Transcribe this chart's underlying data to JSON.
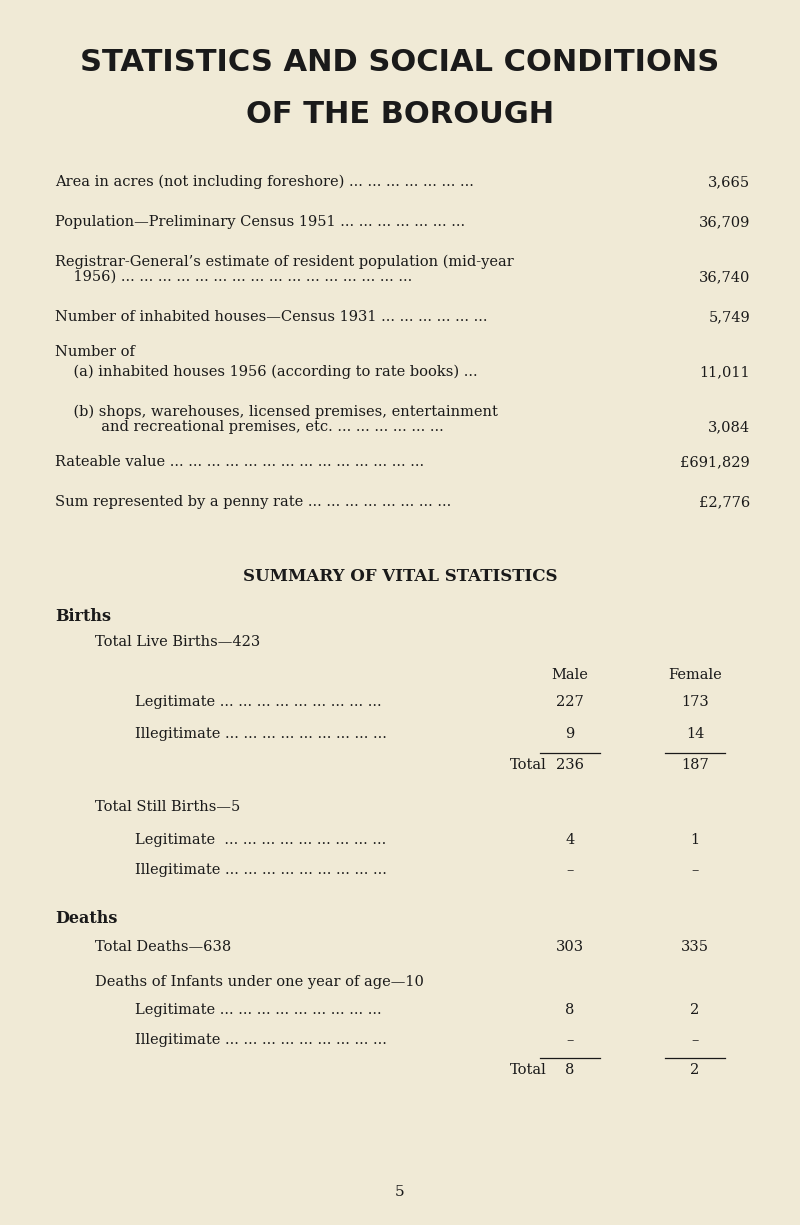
{
  "bg_color": "#f0ead6",
  "text_color": "#1a1a1a",
  "title_line1": "STATISTICS AND SOCIAL CONDITIONS",
  "title_line2": "OF THE BOROUGH",
  "summary_title": "SUMMARY OF VITAL STATISTICS",
  "births_header": "Births",
  "total_live_births": "Total Live Births—423",
  "col_male": "Male",
  "col_female": "Female",
  "births_rows": [
    {
      "label": "Legitimate ... ... ... ... ... ... ... ... ...",
      "male": "227",
      "female": "173"
    },
    {
      "label": "Illegitimate ... ... ... ... ... ... ... ... ...",
      "male": "9",
      "female": "14"
    }
  ],
  "births_total_label": "Total",
  "births_total_male": "236",
  "births_total_female": "187",
  "total_still_births": "Total Still Births—5",
  "still_births_rows": [
    {
      "label": "Legitimate  ... ... ... ... ... ... ... ... ...",
      "male": "4",
      "female": "1"
    },
    {
      "label": "Illegitimate ... ... ... ... ... ... ... ... ...",
      "male": "–",
      "female": "–"
    }
  ],
  "deaths_header": "Deaths",
  "total_deaths": "Total Deaths—638",
  "total_deaths_male": "303",
  "total_deaths_female": "335",
  "infant_deaths": "Deaths of Infants under one year of age—10",
  "infant_rows": [
    {
      "label": "Legitimate ... ... ... ... ... ... ... ... ...",
      "male": "8",
      "female": "2"
    },
    {
      "label": "Illegitimate ... ... ... ... ... ... ... ... ...",
      "male": "–",
      "female": "–"
    }
  ],
  "infant_total_label": "Total",
  "infant_total_male": "8",
  "infant_total_female": "2",
  "page_number": "5",
  "section1_rows": [
    {
      "label": "Area in acres (not including foreshore) ... ... ... ... ... ... ...",
      "value": "3,665",
      "indent": 0,
      "multiline": false
    },
    {
      "label": "Population—Preliminary Census 1951 ... ... ... ... ... ... ...",
      "value": "36,709",
      "indent": 0,
      "multiline": false
    },
    {
      "label": "Registrar-General’s estimate of resident population (mid-year",
      "value": "",
      "indent": 0,
      "multiline": true
    },
    {
      "label": "    1956) ... ... ... ... ... ... ... ... ... ... ... ... ... ... ... ...",
      "value": "36,740",
      "indent": 0,
      "multiline": false
    },
    {
      "label": "Number of inhabited houses—Census 1931 ... ... ... ... ... ...",
      "value": "5,749",
      "indent": 0,
      "multiline": false
    },
    {
      "label": "Number of",
      "value": "",
      "indent": 0,
      "multiline": false
    },
    {
      "label": "    (a) inhabited houses 1956 (according to rate books) ...",
      "value": "11,011",
      "indent": 0,
      "multiline": false
    },
    {
      "label": "    (b) shops, warehouses, licensed premises, entertainment",
      "value": "",
      "indent": 0,
      "multiline": true
    },
    {
      "label": "          and recreational premises, etc. ... ... ... ... ... ...",
      "value": "3,084",
      "indent": 0,
      "multiline": false
    },
    {
      "label": "Rateable value ... ... ... ... ... ... ... ... ... ... ... ... ... ...",
      "value": "£691,829",
      "indent": 0,
      "multiline": false
    },
    {
      "label": "Sum represented by a penny rate ... ... ... ... ... ... ... ...",
      "value": "£2,776",
      "indent": 0,
      "multiline": false
    }
  ]
}
